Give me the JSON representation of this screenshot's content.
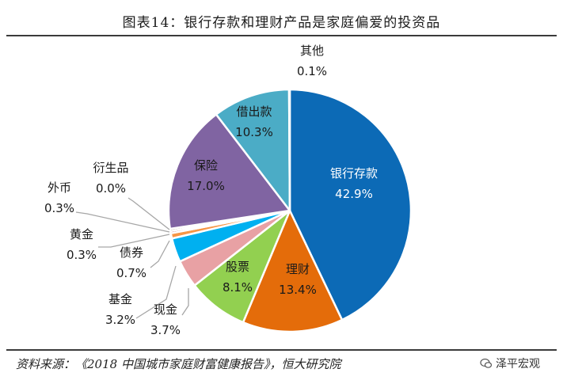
{
  "title": "图表14：银行存款和理财产品是家庭偏爱的投资品",
  "source": "资料来源：《2018 中国城市家庭财富健康报告》，恒大研究院",
  "watermark": "泽平宏观",
  "chart_data": {
    "type": "pie",
    "title": "图表14：银行存款和理财产品是家庭偏爱的投资品",
    "slices": [
      {
        "label": "银行存款",
        "value": 42.9,
        "value_text": "42.9%",
        "color": "#0c6ab6"
      },
      {
        "label": "理财",
        "value": 13.4,
        "value_text": "13.4%",
        "color": "#e46c0a"
      },
      {
        "label": "股票",
        "value": 8.1,
        "value_text": "8.1%",
        "color": "#92d050"
      },
      {
        "label": "现金",
        "value": 3.7,
        "value_text": "3.7%",
        "color": "#e8a1a4"
      },
      {
        "label": "基金",
        "value": 3.2,
        "value_text": "3.2%",
        "color": "#00b0f0"
      },
      {
        "label": "债券",
        "value": 0.7,
        "value_text": "0.7%",
        "color": "#f79646"
      },
      {
        "label": "黄金",
        "value": 0.3,
        "value_text": "0.3%",
        "color": "#c0504d"
      },
      {
        "label": "外币",
        "value": 0.3,
        "value_text": "0.3%",
        "color": "#948a54"
      },
      {
        "label": "衍生品",
        "value": 0.0,
        "value_text": "0.0%",
        "color": "#1f3864"
      },
      {
        "label": "保险",
        "value": 17.0,
        "value_text": "17.0%",
        "color": "#8064a2"
      },
      {
        "label": "借出款",
        "value": 10.3,
        "value_text": "10.3%",
        "color": "#4bacc6"
      },
      {
        "label": "其他",
        "value": 0.1,
        "value_text": "0.1%",
        "color": "#7f7f7f"
      }
    ]
  }
}
